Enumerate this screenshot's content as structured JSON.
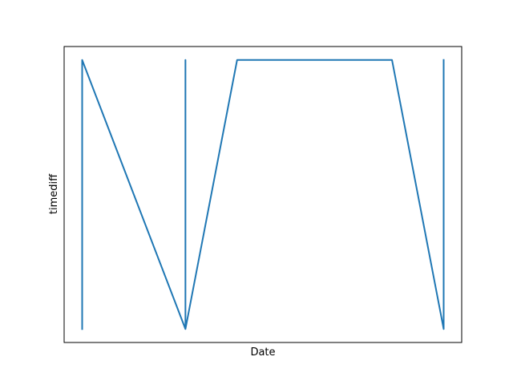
{
  "chart_data": {
    "type": "line",
    "xlabel": "Date",
    "ylabel": "timediff",
    "x_ticks_visible": false,
    "y_ticks_visible": false,
    "grid": false,
    "xlim": [
      0,
      1
    ],
    "ylim": [
      -0.05,
      1.05
    ],
    "series": [
      {
        "color": "#1f77b4",
        "x": [
          0.0,
          0.0,
          0.2857,
          0.2857,
          0.2857,
          0.4286,
          0.8571,
          1.0,
          1.0,
          1.0,
          1.0
        ],
        "y": [
          0.0,
          1.0,
          0.0,
          1.0,
          0.0,
          1.0,
          1.0,
          0.0,
          1.0,
          0.0,
          1.0
        ]
      }
    ]
  }
}
